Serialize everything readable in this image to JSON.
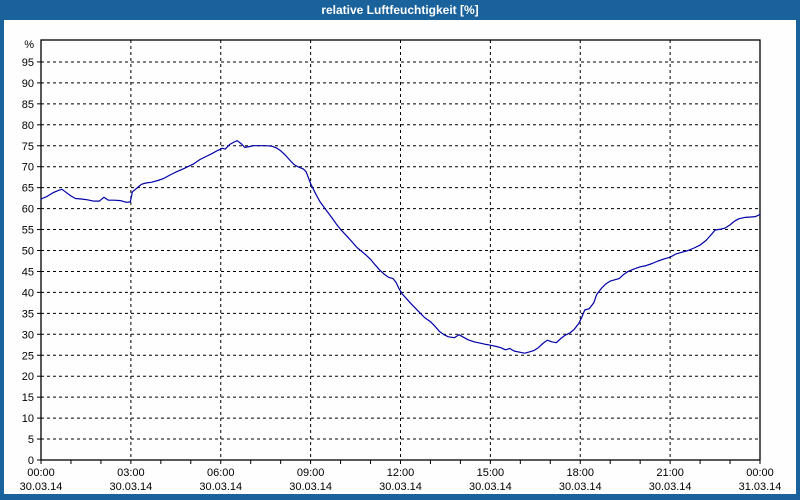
{
  "window": {
    "title": "relative Luftfeuchtigkeit [%]"
  },
  "colors": {
    "titlebar_bg": "#19629b",
    "titlebar_text": "#ffffff",
    "panel_bg": "#fdfefd",
    "grid": "#000000",
    "axis": "#000000",
    "tick_text": "#000000",
    "line": "#0000a8"
  },
  "chart_data": {
    "type": "line",
    "title": "relative Luftfeuchtigkeit [%]",
    "xlabel": "",
    "ylabel": "%",
    "ylim": [
      0,
      100
    ],
    "grid": "dashed",
    "legend_position": "none",
    "y_tick_values": [
      0,
      5,
      10,
      15,
      20,
      25,
      30,
      35,
      40,
      45,
      50,
      55,
      60,
      65,
      70,
      75,
      80,
      85,
      90,
      95
    ],
    "x_axis_hours": 24,
    "x_minor_tick_every_hours": 1,
    "x_ticks": [
      {
        "t": 0,
        "time": "00:00",
        "date": "30.03.14"
      },
      {
        "t": 3,
        "time": "03:00",
        "date": "30.03.14"
      },
      {
        "t": 6,
        "time": "06:00",
        "date": "30.03.14"
      },
      {
        "t": 9,
        "time": "09:00",
        "date": "30.03.14"
      },
      {
        "t": 12,
        "time": "12:00",
        "date": "30.03.14"
      },
      {
        "t": 15,
        "time": "15:00",
        "date": "30.03.14"
      },
      {
        "t": 18,
        "time": "18:00",
        "date": "30.03.14"
      },
      {
        "t": 21,
        "time": "21:00",
        "date": "30.03.14"
      },
      {
        "t": 24,
        "time": "00:00",
        "date": "31.03.14"
      }
    ],
    "series": [
      {
        "name": "relative Luftfeuchtigkeit",
        "color": "#0000a8",
        "points": [
          [
            0,
            62.3
          ],
          [
            0.2,
            62.9
          ],
          [
            0.4,
            63.8
          ],
          [
            0.6,
            64.4
          ],
          [
            0.7,
            64.6
          ],
          [
            0.85,
            63.8
          ],
          [
            1,
            63
          ],
          [
            1.15,
            62.4
          ],
          [
            1.35,
            62.3
          ],
          [
            1.55,
            62.1
          ],
          [
            1.75,
            61.8
          ],
          [
            1.95,
            61.8
          ],
          [
            2.1,
            62.7
          ],
          [
            2.25,
            62
          ],
          [
            2.45,
            62
          ],
          [
            2.65,
            61.9
          ],
          [
            2.85,
            61.5
          ],
          [
            2.98,
            61.6
          ],
          [
            3.05,
            64
          ],
          [
            3.2,
            64.9
          ],
          [
            3.35,
            65.8
          ],
          [
            3.5,
            66.1
          ],
          [
            3.7,
            66.3
          ],
          [
            3.9,
            66.7
          ],
          [
            4.1,
            67.2
          ],
          [
            4.3,
            68
          ],
          [
            4.5,
            68.7
          ],
          [
            4.7,
            69.3
          ],
          [
            4.9,
            70
          ],
          [
            5.1,
            70.7
          ],
          [
            5.3,
            71.7
          ],
          [
            5.5,
            72.4
          ],
          [
            5.7,
            73.1
          ],
          [
            5.9,
            73.9
          ],
          [
            6.05,
            74.4
          ],
          [
            6.15,
            74.2
          ],
          [
            6.3,
            75.3
          ],
          [
            6.45,
            75.9
          ],
          [
            6.55,
            76.2
          ],
          [
            6.7,
            75.4
          ],
          [
            6.8,
            74.6
          ],
          [
            6.95,
            74.8
          ],
          [
            7.1,
            75
          ],
          [
            7.3,
            75
          ],
          [
            7.5,
            75
          ],
          [
            7.7,
            74.9
          ],
          [
            7.85,
            74.5
          ],
          [
            8,
            73.8
          ],
          [
            8.15,
            72.8
          ],
          [
            8.3,
            71.6
          ],
          [
            8.45,
            70.5
          ],
          [
            8.6,
            69.9
          ],
          [
            8.75,
            69.5
          ],
          [
            8.85,
            68.8
          ],
          [
            9,
            66
          ],
          [
            9.15,
            63.8
          ],
          [
            9.3,
            61.8
          ],
          [
            9.5,
            59.8
          ],
          [
            9.7,
            57.9
          ],
          [
            9.85,
            56.4
          ],
          [
            10,
            55
          ],
          [
            10.2,
            53.5
          ],
          [
            10.4,
            51.9
          ],
          [
            10.55,
            50.7
          ],
          [
            10.7,
            49.8
          ],
          [
            10.85,
            48.9
          ],
          [
            11,
            47.9
          ],
          [
            11.15,
            46.6
          ],
          [
            11.3,
            45.4
          ],
          [
            11.45,
            44.4
          ],
          [
            11.6,
            43.6
          ],
          [
            11.75,
            43.3
          ],
          [
            11.85,
            42.4
          ],
          [
            11.95,
            40.9
          ],
          [
            12.05,
            39.7
          ],
          [
            12.2,
            38.5
          ],
          [
            12.35,
            37.3
          ],
          [
            12.5,
            36.2
          ],
          [
            12.65,
            35.1
          ],
          [
            12.8,
            34
          ],
          [
            13,
            33
          ],
          [
            13.15,
            31.9
          ],
          [
            13.3,
            30.7
          ],
          [
            13.45,
            29.9
          ],
          [
            13.6,
            29.4
          ],
          [
            13.8,
            29.2
          ],
          [
            13.95,
            29.9
          ],
          [
            14.1,
            29.3
          ],
          [
            14.25,
            28.7
          ],
          [
            14.45,
            28.2
          ],
          [
            14.65,
            27.9
          ],
          [
            14.85,
            27.6
          ],
          [
            15,
            27.4
          ],
          [
            15.2,
            27.1
          ],
          [
            15.35,
            26.8
          ],
          [
            15.5,
            26.3
          ],
          [
            15.65,
            26.6
          ],
          [
            15.8,
            26
          ],
          [
            16,
            25.7
          ],
          [
            16.15,
            25.5
          ],
          [
            16.3,
            25.8
          ],
          [
            16.45,
            26.1
          ],
          [
            16.6,
            26.8
          ],
          [
            16.75,
            27.8
          ],
          [
            16.9,
            28.6
          ],
          [
            17.05,
            28.2
          ],
          [
            17.2,
            28
          ],
          [
            17.35,
            29
          ],
          [
            17.5,
            29.8
          ],
          [
            17.65,
            30.3
          ],
          [
            17.8,
            31.2
          ],
          [
            17.95,
            32.6
          ],
          [
            18.05,
            34
          ],
          [
            18.15,
            35.8
          ],
          [
            18.3,
            36.1
          ],
          [
            18.45,
            37.5
          ],
          [
            18.55,
            39.5
          ],
          [
            18.7,
            40.9
          ],
          [
            18.85,
            42
          ],
          [
            19,
            42.7
          ],
          [
            19.15,
            43
          ],
          [
            19.3,
            43.3
          ],
          [
            19.45,
            44.3
          ],
          [
            19.6,
            45
          ],
          [
            19.8,
            45.6
          ],
          [
            20,
            46.1
          ],
          [
            20.2,
            46.4
          ],
          [
            20.4,
            46.9
          ],
          [
            20.6,
            47.5
          ],
          [
            20.8,
            48
          ],
          [
            21,
            48.4
          ],
          [
            21.2,
            49.2
          ],
          [
            21.4,
            49.6
          ],
          [
            21.6,
            50
          ],
          [
            21.8,
            50.6
          ],
          [
            22,
            51.3
          ],
          [
            22.2,
            52.4
          ],
          [
            22.35,
            53.6
          ],
          [
            22.5,
            54.9
          ],
          [
            22.7,
            55.1
          ],
          [
            22.85,
            55.4
          ],
          [
            23,
            56.1
          ],
          [
            23.15,
            57
          ],
          [
            23.3,
            57.6
          ],
          [
            23.5,
            57.9
          ],
          [
            23.7,
            58
          ],
          [
            23.85,
            58.1
          ],
          [
            24,
            58.6
          ]
        ]
      }
    ]
  }
}
